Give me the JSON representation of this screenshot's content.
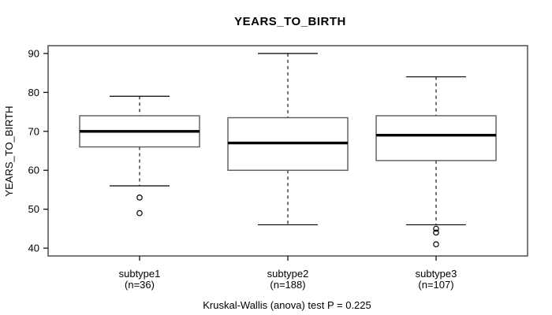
{
  "title": "YEARS_TO_BIRTH",
  "y_axis_label": "YEARS_TO_BIRTH",
  "caption": "Kruskal-Wallis (anova) test P = 0.225",
  "chart_data": {
    "type": "boxplot",
    "title": "YEARS_TO_BIRTH",
    "ylabel": "YEARS_TO_BIRTH",
    "xlabel": "",
    "ylim": [
      38,
      92
    ],
    "yticks": [
      40,
      50,
      60,
      70,
      80,
      90
    ],
    "grid": false,
    "caption": "Kruskal-Wallis (anova) test P = 0.225",
    "groups": [
      {
        "label": "subtype1",
        "sublabel": "(n=36)",
        "n": 36,
        "whisker_high": 79,
        "q3": 74,
        "median": 70,
        "q1": 66,
        "whisker_low": 56,
        "outliers": [
          53,
          49
        ]
      },
      {
        "label": "subtype2",
        "sublabel": "(n=188)",
        "n": 188,
        "whisker_high": 90,
        "q3": 73.5,
        "median": 67,
        "q1": 60,
        "whisker_low": 46,
        "outliers": []
      },
      {
        "label": "subtype3",
        "sublabel": "(n=107)",
        "n": 107,
        "whisker_high": 84,
        "q3": 74,
        "median": 69,
        "q1": 62.5,
        "whisker_low": 46,
        "outliers": [
          45,
          44,
          41
        ]
      }
    ],
    "colors": {
      "line": "#000000",
      "frame": "#5a5a5a",
      "box_border": "#5a5a5a",
      "box_fill": "#ffffff",
      "background": "#ffffff"
    }
  }
}
